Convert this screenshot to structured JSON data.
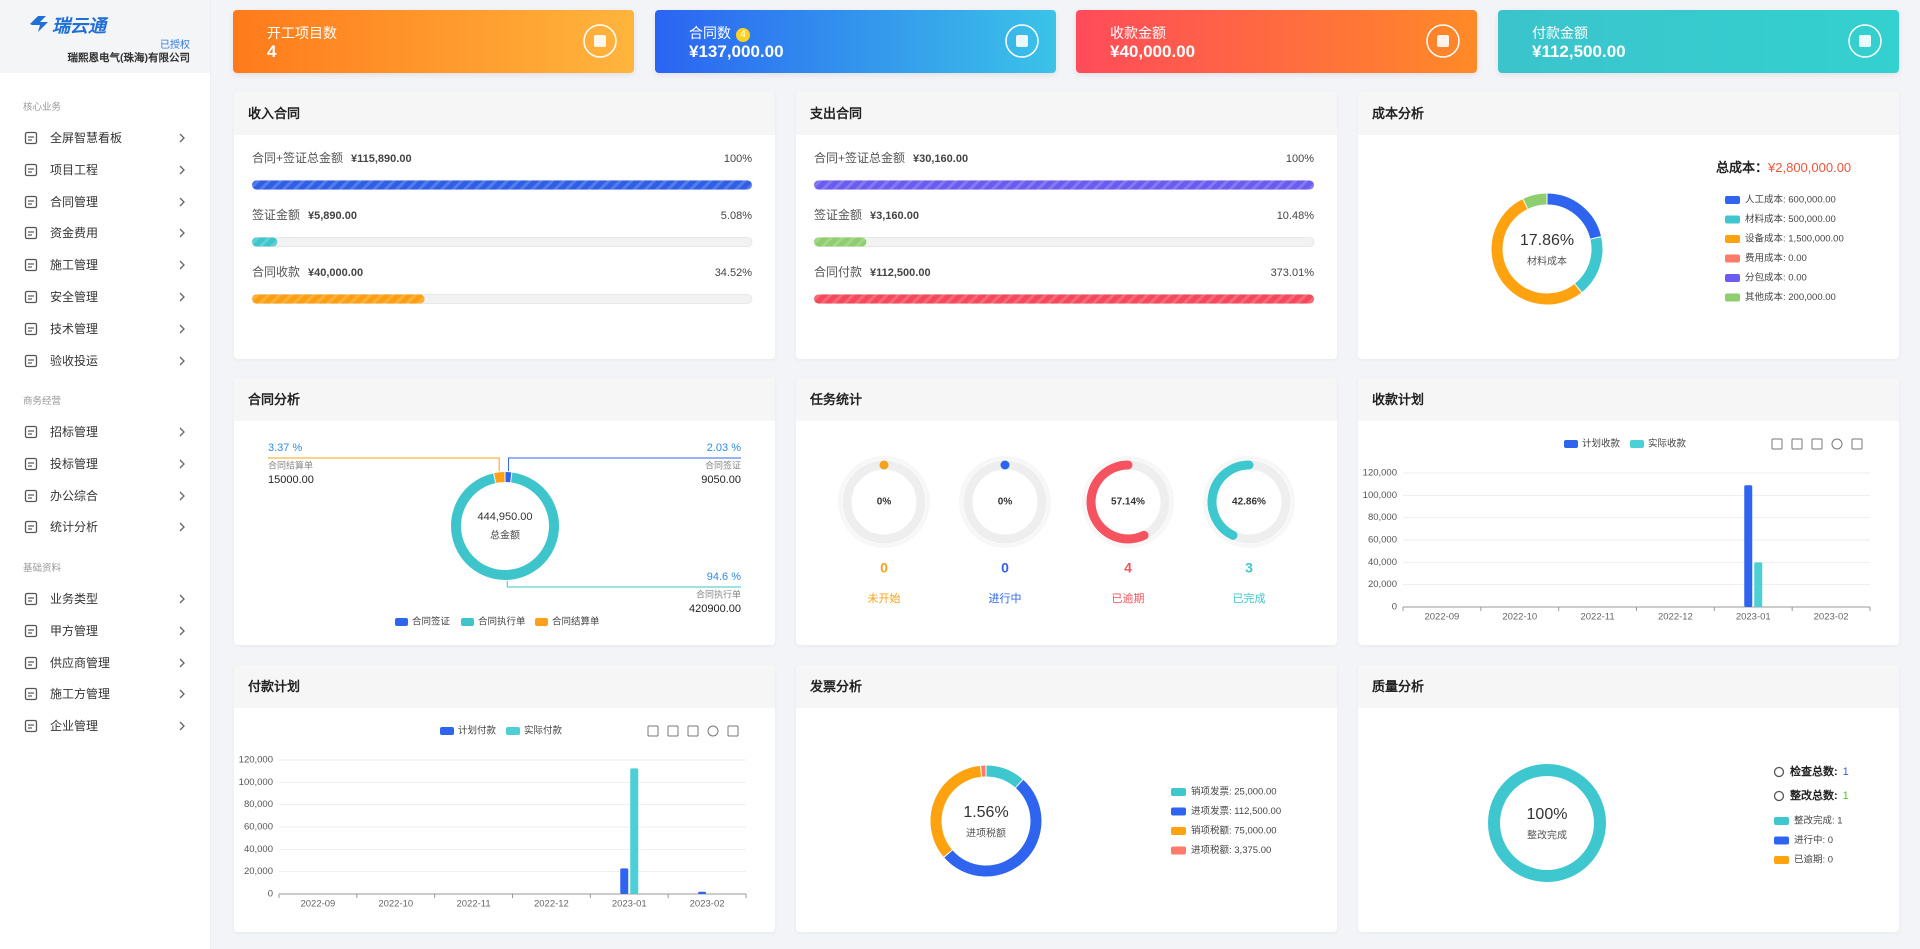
{
  "sidebar": {
    "brand": "瑞云通",
    "license": "已授权",
    "company": "瑞熙恩电气(珠海)有限公司",
    "groups": [
      {
        "title": "核心业务",
        "items": [
          "全屏智慧看板",
          "项目工程",
          "合同管理",
          "资金费用",
          "施工管理",
          "安全管理",
          "技术管理",
          "验收投运"
        ]
      },
      {
        "title": "商务经营",
        "items": [
          "招标管理",
          "投标管理",
          "办公综合",
          "统计分析"
        ]
      },
      {
        "title": "基础资料",
        "items": [
          "业务类型",
          "甲方管理",
          "供应商管理",
          "施工方管理",
          "企业管理"
        ]
      }
    ]
  },
  "stat_cards": [
    {
      "title": "开工项目数",
      "value": 4
    },
    {
      "title": "合同数",
      "badge": 4,
      "value": "¥137,000.00"
    },
    {
      "title": "收款金额",
      "value": "¥40,000.00"
    },
    {
      "title": "付款金额",
      "value": "¥112,500.00"
    }
  ],
  "chart_data": [
    {
      "type": "progress",
      "title": "收入合同",
      "categories": [
        "合同+签证总金额",
        "签证金额",
        "合同收款"
      ],
      "amounts": [
        "¥115,890.00",
        "¥5,890.00",
        "¥40,000.00"
      ],
      "values": [
        100,
        5.08,
        34.52
      ],
      "value_labels": [
        "100%",
        "5.08%",
        "34.52%"
      ],
      "colors": [
        "#2f5fe6",
        "#3ec5cc",
        "#ff9f10"
      ],
      "xlim": [
        0,
        100
      ]
    },
    {
      "type": "progress",
      "title": "支出合同",
      "categories": [
        "合同+签证总金额",
        "签证金额",
        "合同付款"
      ],
      "amounts": [
        "¥30,160.00",
        "¥3,160.00",
        "¥112,500.00"
      ],
      "values": [
        100,
        10.48,
        373.01
      ],
      "value_labels": [
        "100%",
        "10.48%",
        "373.01%"
      ],
      "colors": [
        "#6a5cf0",
        "#8ece6e",
        "#f5485b"
      ],
      "xlim": [
        0,
        100
      ]
    },
    {
      "type": "donut",
      "title": "成本分析",
      "total_label": "总成本：",
      "total_value": "¥2,800,000.00",
      "center_label": "17.86%",
      "center_text": "材料成本",
      "categories": [
        "人工成本: 600,000.00",
        "材料成本: 500,000.00",
        "设备成本: 1,500,000.00",
        "费用成本: 0.00",
        "分包成本: 0.00",
        "其他成本: 200,000.00"
      ],
      "values": [
        600000,
        500000,
        1500000,
        0,
        0,
        200000
      ],
      "colors": [
        "#2f64ee",
        "#3ec7cf",
        "#ffa20f",
        "#ff7a6a",
        "#6a5cf0",
        "#8ece6e"
      ],
      "legend": "right"
    },
    {
      "type": "pie",
      "title": "合同分析",
      "center_label": "444,950.00",
      "center_text": "总金额",
      "categories": [
        "合同签证",
        "合同执行单",
        "合同结算单"
      ],
      "values": [
        9050,
        420900,
        15000
      ],
      "value_labels": [
        "9050.00",
        "420900.00",
        "15000.00"
      ],
      "percent_labels": [
        "2.03 %",
        "94.6 %",
        "3.37 %"
      ],
      "colors": [
        "#2f64ee",
        "#3ec5cc",
        "#ff9f1a"
      ],
      "legend": "bottom"
    },
    {
      "type": "gauge",
      "title": "任务统计",
      "categories": [
        "未开始",
        "进行中",
        "已逾期",
        "已完成"
      ],
      "values": [
        0,
        0,
        57.14,
        42.86
      ],
      "value_labels": [
        "0%",
        "0%",
        "57.14%",
        "42.86%"
      ],
      "counts": [
        0,
        0,
        4,
        3
      ],
      "colors": [
        "#f7a21b",
        "#2f64ee",
        "#f5535f",
        "#3ec7cf"
      ]
    },
    {
      "type": "bar",
      "title": "收款计划",
      "categories": [
        "2022-09",
        "2022-10",
        "2022-11",
        "2022-12",
        "2023-01",
        "2023-02"
      ],
      "series": [
        {
          "name": "计划收款",
          "color": "#2f64ee",
          "values": [
            0,
            0,
            0,
            0,
            109000,
            0
          ]
        },
        {
          "name": "实际收款",
          "color": "#4ccfd6",
          "values": [
            0,
            0,
            0,
            0,
            40000,
            0
          ]
        }
      ],
      "ylim": [
        0,
        120000
      ],
      "yticks": [
        0,
        {
          "value": 20000,
          "label": "20,000"
        },
        {
          "value": 40000,
          "label": "40,000"
        },
        {
          "value": 60000,
          "label": "60,000"
        },
        {
          "value": 80000,
          "label": "80,000"
        },
        {
          "value": 100000,
          "label": "100,000"
        },
        {
          "value": 120000,
          "label": "120,000"
        }
      ],
      "grid": true,
      "legend": "top"
    },
    {
      "type": "bar",
      "title": "付款计划",
      "categories": [
        "2022-09",
        "2022-10",
        "2022-11",
        "2022-12",
        "2023-01",
        "2023-02"
      ],
      "series": [
        {
          "name": "计划付款",
          "color": "#2f64ee",
          "values": [
            0,
            0,
            0,
            0,
            23000,
            2000
          ]
        },
        {
          "name": "实际付款",
          "color": "#4ccfd6",
          "values": [
            0,
            0,
            0,
            0,
            112500,
            0
          ]
        }
      ],
      "ylim": [
        0,
        120000
      ],
      "yticks": [
        0,
        {
          "value": 20000,
          "label": "20,000"
        },
        {
          "value": 40000,
          "label": "40,000"
        },
        {
          "value": 60000,
          "label": "60,000"
        },
        {
          "value": 80000,
          "label": "80,000"
        },
        {
          "value": 100000,
          "label": "100,000"
        },
        {
          "value": 120000,
          "label": "120,000"
        }
      ],
      "grid": true,
      "legend": "top"
    },
    {
      "type": "donut",
      "title": "发票分析",
      "center_label": "1.56%",
      "center_text": "进项税额",
      "categories": [
        "销项发票: 25,000.00",
        "进项发票: 112,500.00",
        "销项税额: 75,000.00",
        "进项税额: 3,375.00"
      ],
      "values": [
        25000,
        112500,
        75000,
        3375
      ],
      "colors": [
        "#3ec7cf",
        "#2f64ee",
        "#ffa20f",
        "#ff7a6a"
      ],
      "legend": "right"
    },
    {
      "type": "donut",
      "title": "质量分析",
      "center_label": "100%",
      "center_text": "整改完成",
      "stats": [
        {
          "label": "检查总数:",
          "value": 1
        },
        {
          "label": "整改总数:",
          "value": 1
        }
      ],
      "categories": [
        "整改完成: 1",
        "进行中: 0",
        "已逾期: 0"
      ],
      "values": [
        1,
        0,
        0
      ],
      "colors": [
        "#3ec7cf",
        "#2f64ee",
        "#ffa20f"
      ],
      "legend": "right"
    }
  ]
}
